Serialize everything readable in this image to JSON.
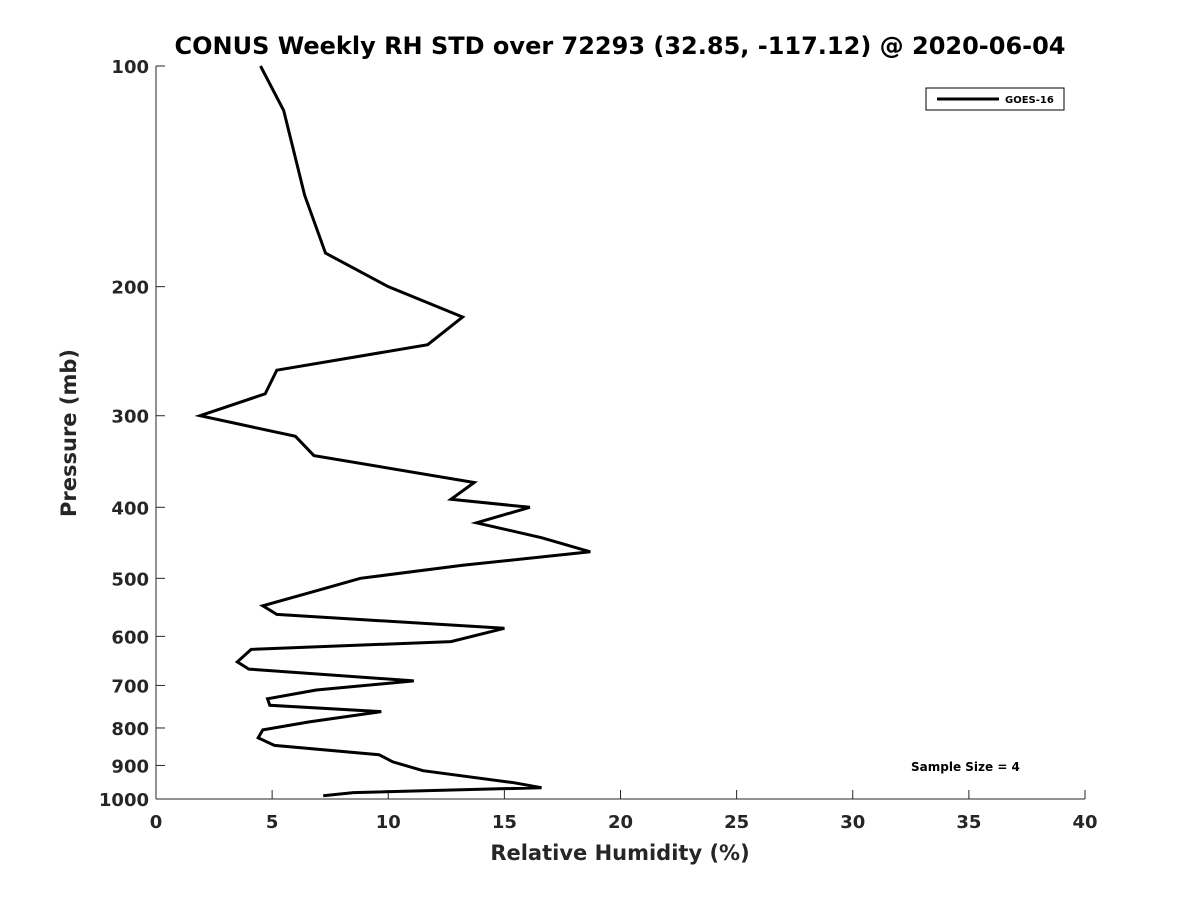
{
  "chart_data": {
    "type": "line",
    "title": "CONUS Weekly RH STD over 72293 (32.85, -117.12) @ 2020-06-04",
    "xlabel": "Relative Humidity (%)",
    "ylabel": "Pressure (mb)",
    "xlim": [
      0,
      40
    ],
    "ylim": [
      1000,
      100
    ],
    "yscale": "log",
    "x_ticks": [
      0,
      5,
      10,
      15,
      20,
      25,
      30,
      35,
      40
    ],
    "y_ticks": [
      100,
      200,
      300,
      400,
      500,
      600,
      700,
      800,
      900,
      1000
    ],
    "grid": false,
    "legend_position": "top-right",
    "series": [
      {
        "name": "GOES-16",
        "color": "#000000",
        "x": [
          4.5,
          5.5,
          6.4,
          7.3,
          10.0,
          13.2,
          11.7,
          5.2,
          4.7,
          1.9,
          6.0,
          6.8,
          13.7,
          12.7,
          16.1,
          13.8,
          16.6,
          18.7,
          13.2,
          8.8,
          6.9,
          4.6,
          5.2,
          15.0,
          12.7,
          4.1,
          3.5,
          4.0,
          11.1,
          6.9,
          4.8,
          4.9,
          9.7,
          6.6,
          4.6,
          4.4,
          5.1,
          9.6,
          10.2,
          11.5,
          15.4,
          16.6,
          8.5,
          7.2
        ],
        "y": [
          100,
          115,
          150,
          180,
          200,
          220,
          240,
          260,
          280,
          300,
          320,
          340,
          370,
          390,
          400,
          420,
          440,
          460,
          480,
          500,
          520,
          545,
          560,
          585,
          610,
          625,
          650,
          665,
          690,
          710,
          730,
          745,
          760,
          785,
          805,
          825,
          845,
          870,
          890,
          915,
          950,
          965,
          980,
          990
        ]
      }
    ],
    "annotations": [
      "Sample Size = 4"
    ]
  }
}
